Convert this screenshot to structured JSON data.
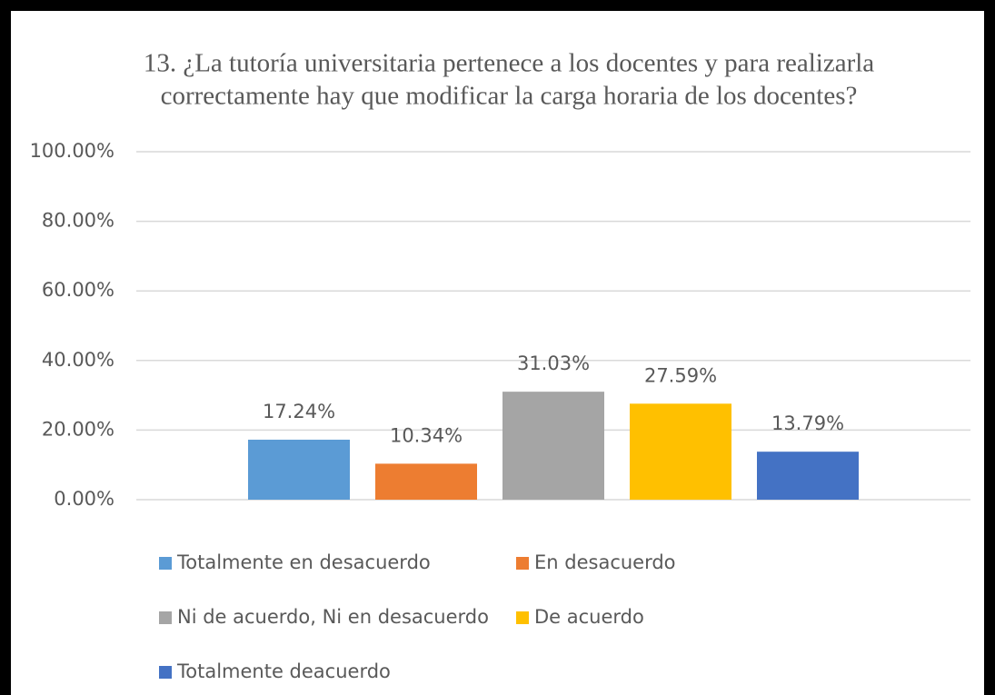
{
  "chart_data": {
    "type": "bar",
    "title": "13. ¿La tutoría universitaria pertenece a los docentes y para realizarla",
    "subtitle": "correctamente hay que modificar la carga horaria de los docentes?",
    "categories": [
      null
    ],
    "series": [
      {
        "name": "Totalmente en desacuerdo",
        "color": "#5b9bd5",
        "values": [
          17.24
        ],
        "value_labels": [
          "17.24%"
        ]
      },
      {
        "name": "En desacuerdo",
        "color": "#ed7d31",
        "values": [
          10.34
        ],
        "value_labels": [
          "10.34%"
        ]
      },
      {
        "name": "Ni de acuerdo, Ni en desacuerdo",
        "color": "#a5a5a5",
        "values": [
          31.03
        ],
        "value_labels": [
          "31.03%"
        ]
      },
      {
        "name": "De acuerdo",
        "color": "#ffc000",
        "values": [
          27.59
        ],
        "value_labels": [
          "27.59%"
        ]
      },
      {
        "name": "Totalmente deacuerdo",
        "color": "#4472c4",
        "values": [
          13.79
        ],
        "value_labels": [
          "13.79%"
        ]
      }
    ],
    "ylim": [
      0,
      100
    ],
    "yticks": [
      {
        "value": 0,
        "label": "0.00%"
      },
      {
        "value": 20,
        "label": "20.00%"
      },
      {
        "value": 40,
        "label": "40.00%"
      },
      {
        "value": 60,
        "label": "60.00%"
      },
      {
        "value": 80,
        "label": "80.00%"
      },
      {
        "value": 100,
        "label": "100.00%"
      }
    ],
    "grid": true,
    "legend": "bottom"
  }
}
